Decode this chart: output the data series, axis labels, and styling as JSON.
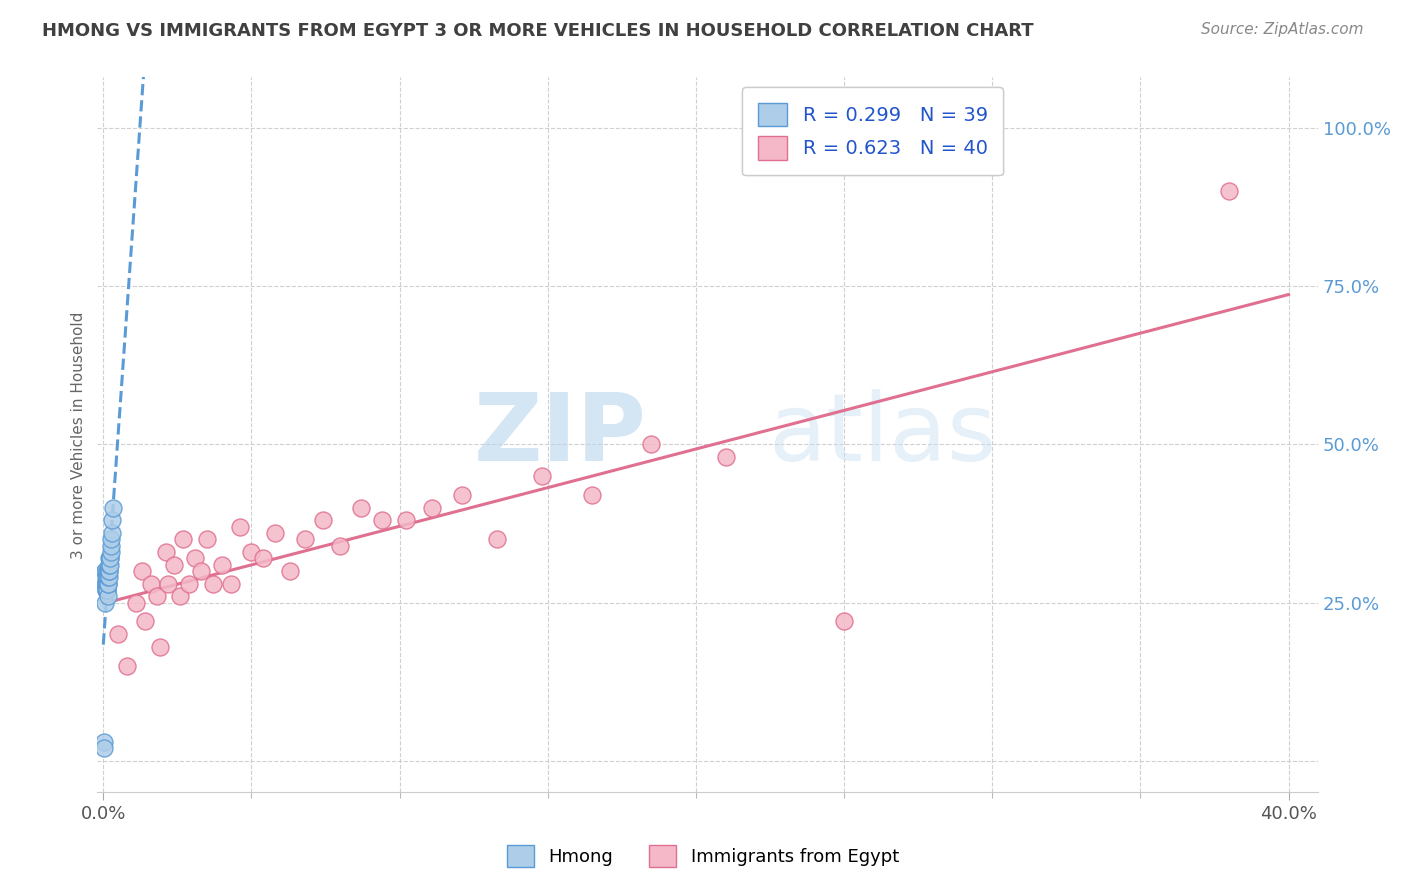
{
  "title": "HMONG VS IMMIGRANTS FROM EGYPT 3 OR MORE VEHICLES IN HOUSEHOLD CORRELATION CHART",
  "source_text": "Source: ZipAtlas.com",
  "ylabel": "3 or more Vehicles in Household",
  "xlim": [
    -0.002,
    0.41
  ],
  "ylim": [
    -0.05,
    1.08
  ],
  "xtick_vals": [
    0.0,
    0.4
  ],
  "xtick_labels": [
    "0.0%",
    "40.0%"
  ],
  "ytick_vals": [
    0.0,
    0.25,
    0.5,
    0.75,
    1.0
  ],
  "ytick_labels": [
    "",
    "25.0%",
    "50.0%",
    "75.0%",
    "100.0%"
  ],
  "hmong_color": "#aecde8",
  "hmong_edge_color": "#5b9bd5",
  "egypt_color": "#f4b8c8",
  "egypt_edge_color": "#e07090",
  "hmong_trend_color": "#5b9bd5",
  "egypt_trend_color": "#e07090",
  "R_hmong": 0.299,
  "N_hmong": 39,
  "R_egypt": 0.623,
  "N_egypt": 40,
  "legend_label_hmong": "Hmong",
  "legend_label_egypt": "Immigrants from Egypt",
  "watermark_zip": "ZIP",
  "watermark_atlas": "atlas",
  "background_color": "#ffffff",
  "grid_color": "#d0d0d0",
  "title_color": "#404040",
  "source_color": "#888888",
  "ytick_color": "#5b9bd5",
  "xtick_color": "#555555",
  "hmong_x": [
    0.0003,
    0.0005,
    0.0006,
    0.0007,
    0.0007,
    0.0008,
    0.0009,
    0.001,
    0.001,
    0.0011,
    0.0011,
    0.0012,
    0.0012,
    0.0013,
    0.0013,
    0.0014,
    0.0014,
    0.0015,
    0.0015,
    0.0015,
    0.0016,
    0.0016,
    0.0017,
    0.0018,
    0.0018,
    0.0019,
    0.002,
    0.002,
    0.0021,
    0.0022,
    0.0023,
    0.0024,
    0.0025,
    0.0026,
    0.0027,
    0.0028,
    0.003,
    0.0032,
    0.0001
  ],
  "hmong_y": [
    0.03,
    0.25,
    0.3,
    0.28,
    0.3,
    0.28,
    0.27,
    0.27,
    0.29,
    0.27,
    0.29,
    0.28,
    0.3,
    0.28,
    0.3,
    0.27,
    0.29,
    0.26,
    0.28,
    0.3,
    0.28,
    0.3,
    0.29,
    0.29,
    0.31,
    0.3,
    0.3,
    0.32,
    0.31,
    0.32,
    0.31,
    0.32,
    0.33,
    0.34,
    0.35,
    0.36,
    0.38,
    0.4,
    0.02
  ],
  "egypt_x": [
    0.005,
    0.008,
    0.011,
    0.013,
    0.014,
    0.016,
    0.018,
    0.019,
    0.021,
    0.022,
    0.024,
    0.026,
    0.027,
    0.029,
    0.031,
    0.033,
    0.035,
    0.037,
    0.04,
    0.043,
    0.046,
    0.05,
    0.054,
    0.058,
    0.063,
    0.068,
    0.074,
    0.08,
    0.087,
    0.094,
    0.102,
    0.111,
    0.121,
    0.133,
    0.148,
    0.165,
    0.185,
    0.21,
    0.25,
    0.38
  ],
  "egypt_y": [
    0.2,
    0.15,
    0.25,
    0.3,
    0.22,
    0.28,
    0.26,
    0.18,
    0.33,
    0.28,
    0.31,
    0.26,
    0.35,
    0.28,
    0.32,
    0.3,
    0.35,
    0.28,
    0.31,
    0.28,
    0.37,
    0.33,
    0.32,
    0.36,
    0.3,
    0.35,
    0.38,
    0.34,
    0.4,
    0.38,
    0.38,
    0.4,
    0.42,
    0.35,
    0.45,
    0.42,
    0.5,
    0.48,
    0.22,
    0.9
  ]
}
